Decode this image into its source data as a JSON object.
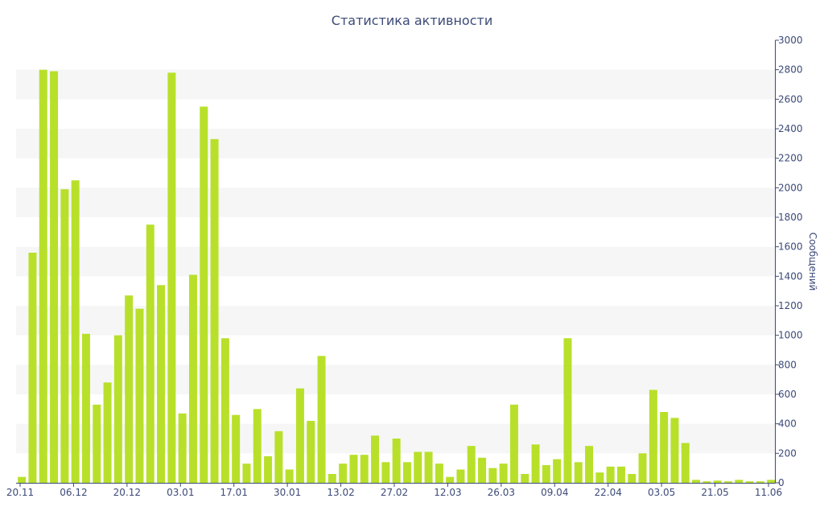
{
  "chart_data": {
    "type": "bar",
    "title": "Статистика активности",
    "xlabel": "",
    "ylabel": "Сообщений",
    "ylim": [
      0,
      3000
    ],
    "y_axis_position": "right",
    "y_ticks": [
      0,
      200,
      400,
      600,
      800,
      1000,
      1200,
      1400,
      1600,
      1800,
      2000,
      2200,
      2400,
      2600,
      2800,
      3000
    ],
    "x_tick_labels": [
      "20.11",
      "06.12",
      "20.12",
      "03.01",
      "17.01",
      "30.01",
      "13.02",
      "27.02",
      "12.03",
      "26.03",
      "09.04",
      "22.04",
      "03.05",
      "21.05",
      "11.06"
    ],
    "grid": "horizontal alternating bands",
    "bar_color": "#b8e02a",
    "band_color": "#f6f6f6",
    "text_color": "#3c4a78",
    "values": [
      40,
      1560,
      2800,
      2790,
      1990,
      2050,
      1010,
      530,
      680,
      1000,
      1270,
      1180,
      1750,
      1340,
      2780,
      470,
      1410,
      2550,
      2330,
      980,
      460,
      130,
      500,
      180,
      350,
      90,
      640,
      420,
      860,
      60,
      130,
      190,
      190,
      320,
      140,
      300,
      140,
      210,
      210,
      130,
      40,
      90,
      250,
      170,
      100,
      130,
      530,
      60,
      260,
      120,
      160,
      980,
      140,
      250,
      70,
      110,
      110,
      60,
      200,
      630,
      480,
      440,
      270,
      20,
      10,
      15,
      10,
      20,
      10,
      10,
      20
    ]
  }
}
